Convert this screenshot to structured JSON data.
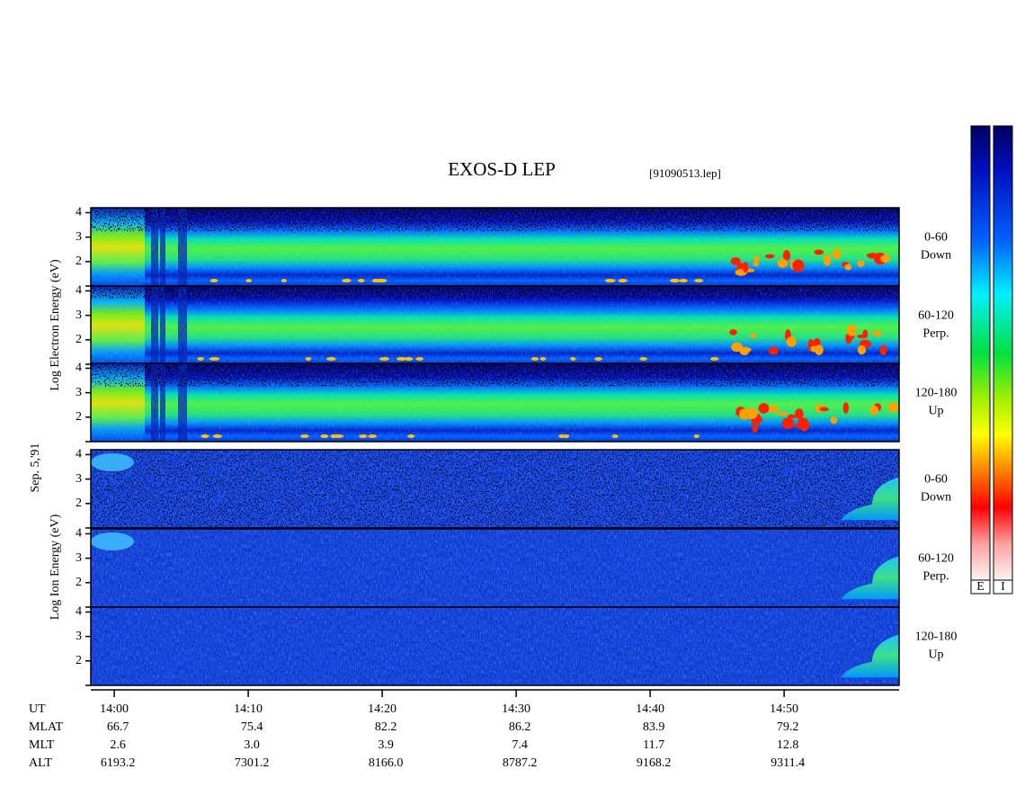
{
  "chart_data": {
    "type": "spectrogram",
    "title": "EXOS-D LEP",
    "file": "[91090513.lep]",
    "date": "Sep. 5,'91",
    "xlim": [
      "13:58:15",
      "14:58:35"
    ],
    "xticks": [
      "14:00",
      "14:10",
      "14:20",
      "14:30",
      "14:40",
      "14:50"
    ],
    "ylim": [
      1,
      4.2
    ],
    "yticks": [
      2,
      3,
      4
    ],
    "groups": [
      {
        "ylabel": "Log Electron Energy (eV)",
        "kind": "electron",
        "panels": [
          {
            "angle": "0-60",
            "direction": "Down"
          },
          {
            "angle": "60-120",
            "direction": "Perp."
          },
          {
            "angle": "120-180",
            "direction": "Up"
          }
        ]
      },
      {
        "ylabel": "Log Ion Energy (eV)",
        "kind": "ion",
        "panels": [
          {
            "angle": "0-60",
            "direction": "Down"
          },
          {
            "angle": "60-120",
            "direction": "Perp."
          },
          {
            "angle": "120-180",
            "direction": "Up"
          }
        ]
      }
    ],
    "orbit": {
      "time_label": "UT",
      "rows": [
        {
          "name": "MLAT",
          "values": [
            "66.7",
            "75.4",
            "82.2",
            "86.2",
            "83.9",
            "79.2"
          ]
        },
        {
          "name": "MLT",
          "values": [
            "2.6",
            "3.0",
            "3.9",
            "7.4",
            "11.7",
            "12.8"
          ]
        },
        {
          "name": "ALT",
          "values": [
            "6193.2",
            "7301.2",
            "8166.0",
            "8787.2",
            "9168.2",
            "9311.4"
          ]
        }
      ]
    },
    "colorbars": [
      {
        "label": "E"
      },
      {
        "label": "I"
      }
    ]
  }
}
